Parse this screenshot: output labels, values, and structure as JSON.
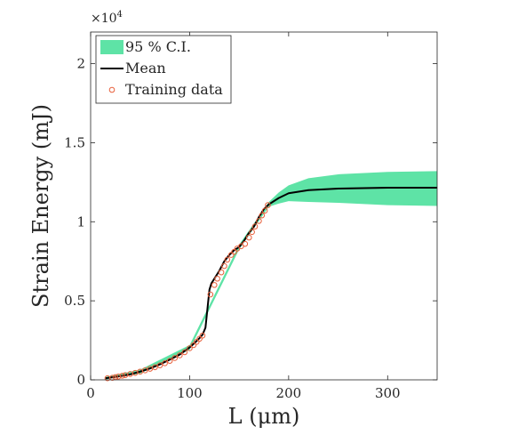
{
  "chart_data": {
    "type": "line",
    "xlabel": "L (μm)",
    "ylabel": "Strain Energy (mJ)",
    "y_exponent_label": "×10^4",
    "y_scale_factor": 10000,
    "xlim": [
      0,
      350
    ],
    "ylim": [
      0,
      22000
    ],
    "x_ticks": [
      0,
      100,
      200,
      300
    ],
    "x_tick_labels": [
      "0",
      "100",
      "200",
      "300"
    ],
    "y_ticks": [
      0,
      5000,
      10000,
      15000,
      20000
    ],
    "y_tick_labels": [
      "0",
      "0.5",
      "1",
      "1.5",
      "2"
    ],
    "grid": false,
    "legend": {
      "placement": "top-left",
      "entries": [
        {
          "label": "95 % C.I.",
          "kind": "band"
        },
        {
          "label": "Mean",
          "kind": "line"
        },
        {
          "label": "Training data",
          "kind": "marker"
        }
      ]
    },
    "colors": {
      "ci_band": "#5ee3a6",
      "mean_line": "#000000",
      "training_marker": "#e8603c"
    },
    "series": [
      {
        "name": "Mean",
        "x": [
          15,
          20,
          30,
          40,
          50,
          60,
          70,
          80,
          90,
          100,
          105,
          110,
          113,
          116,
          118,
          120,
          122,
          125,
          130,
          135,
          140,
          145,
          150,
          155,
          160,
          165,
          170,
          175,
          180,
          190,
          200,
          220,
          250,
          300,
          350
        ],
        "y": [
          100,
          150,
          230,
          350,
          520,
          720,
          980,
          1280,
          1600,
          2050,
          2330,
          2640,
          2850,
          3300,
          4500,
          5700,
          6100,
          6400,
          6900,
          7500,
          7900,
          8200,
          8400,
          8800,
          9300,
          9700,
          10300,
          10800,
          11100,
          11500,
          11800,
          12000,
          12100,
          12150,
          12150
        ]
      },
      {
        "name": "95 % C.I.",
        "x": [
          15,
          50,
          100,
          150,
          180,
          190,
          200,
          220,
          250,
          300,
          350
        ],
        "upper": [
          180,
          650,
          2200,
          8550,
          11250,
          11850,
          12300,
          12750,
          13000,
          13150,
          13200
        ],
        "lower": [
          20,
          400,
          1900,
          8250,
          10950,
          11150,
          11300,
          11250,
          11200,
          11050,
          11000
        ]
      },
      {
        "name": "Training data",
        "x": [
          17,
          22,
          25,
          28,
          32,
          35,
          40,
          45,
          50,
          55,
          60,
          65,
          70,
          75,
          80,
          85,
          90,
          95,
          100,
          104,
          107,
          110,
          113,
          121,
          125,
          128,
          132,
          135,
          138,
          142,
          145,
          148,
          152,
          156,
          160,
          163,
          166,
          170,
          173,
          176,
          179
        ],
        "y": [
          100,
          130,
          170,
          210,
          260,
          300,
          370,
          440,
          520,
          600,
          700,
          800,
          920,
          1050,
          1200,
          1380,
          1550,
          1750,
          2000,
          2200,
          2400,
          2600,
          2800,
          5400,
          6000,
          6400,
          6800,
          7200,
          7600,
          7900,
          8100,
          8300,
          8450,
          8600,
          9000,
          9350,
          9700,
          10050,
          10400,
          10700,
          11050
        ]
      }
    ]
  }
}
